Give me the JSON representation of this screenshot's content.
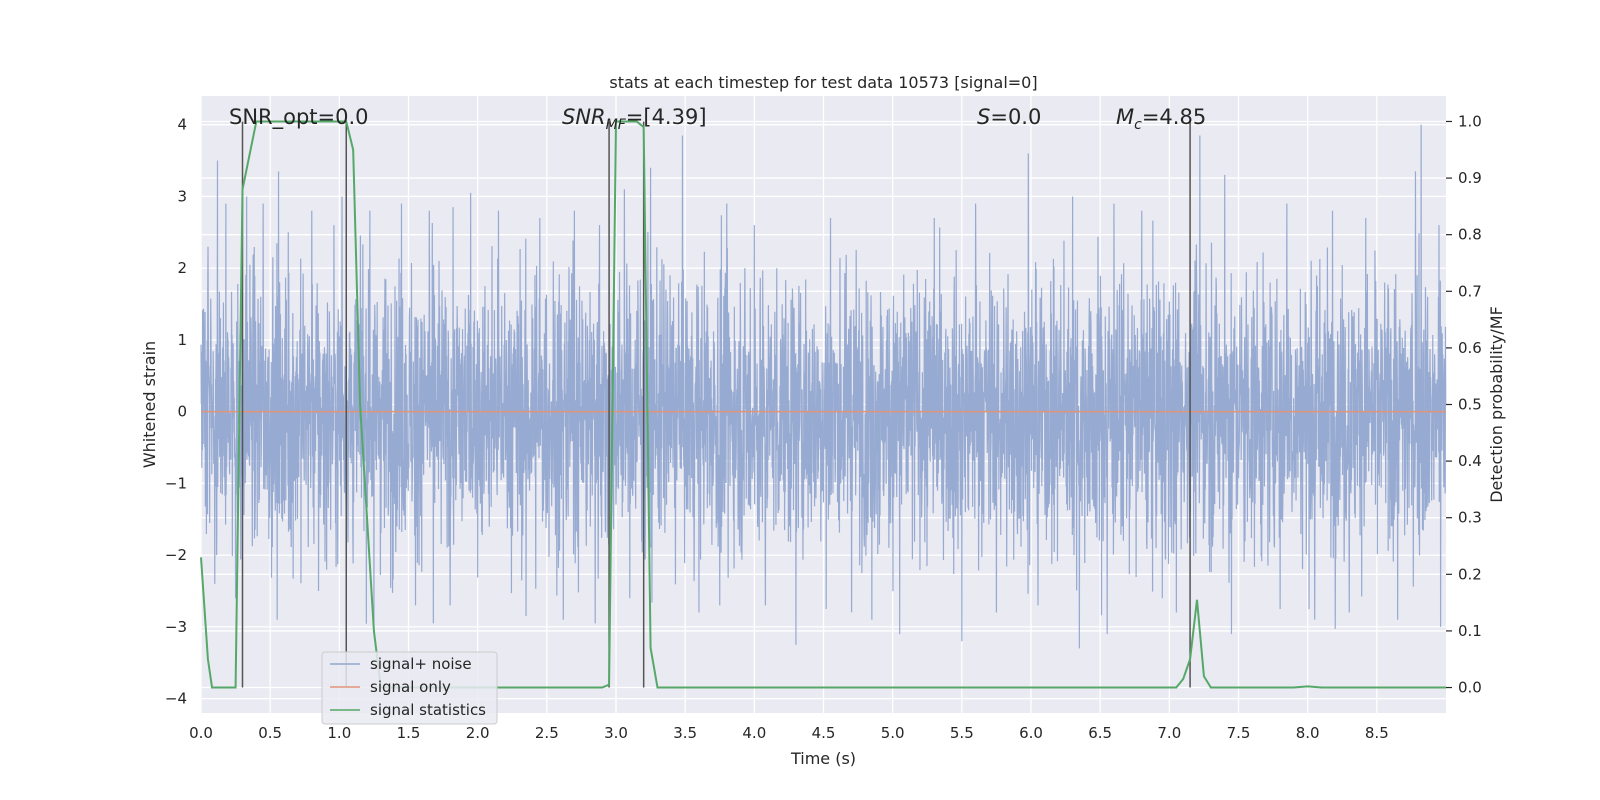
{
  "chart_data": {
    "type": "line",
    "title": "stats at each timestep for test data 10573 [signal=0]",
    "xlabel": "Time (s)",
    "ylabel": "Whitened strain",
    "y2label": "Detection probability/MF",
    "xlim": [
      0,
      9.0
    ],
    "ylim": [
      -4.2,
      4.4
    ],
    "y2lim": [
      -0.045,
      1.045
    ],
    "xticks": [
      0.0,
      0.5,
      1.0,
      1.5,
      2.0,
      2.5,
      3.0,
      3.5,
      4.0,
      4.5,
      5.0,
      5.5,
      6.0,
      6.5,
      7.0,
      7.5,
      8.0,
      8.5
    ],
    "xtick_labels": [
      "0.0",
      "0.5",
      "1.0",
      "1.5",
      "2.0",
      "2.5",
      "3.0",
      "3.5",
      "4.0",
      "4.5",
      "5.0",
      "5.5",
      "6.0",
      "6.5",
      "7.0",
      "7.5",
      "8.0",
      "8.5"
    ],
    "yticks": [
      -4,
      -3,
      -2,
      -1,
      0,
      1,
      2,
      3,
      4
    ],
    "ytick_labels": [
      "−4",
      "−3",
      "−2",
      "−1",
      "0",
      "1",
      "2",
      "3",
      "4"
    ],
    "y2ticks": [
      0.0,
      0.1,
      0.2,
      0.3,
      0.4,
      0.5,
      0.6,
      0.7,
      0.8,
      0.9,
      1.0
    ],
    "y2tick_labels": [
      "0.0",
      "0.1",
      "0.2",
      "0.3",
      "0.4",
      "0.5",
      "0.6",
      "0.7",
      "0.8",
      "0.9",
      "1.0"
    ],
    "grid": true,
    "legend_position": "lower-left",
    "annotations": {
      "snr_opt": "SNR_opt=0.0",
      "snr_mf_main": "SNR",
      "snr_mf_sub": "MF",
      "snr_mf_value": "=[4.39]",
      "s_main": "S",
      "s_value": "=0.0",
      "mc_main": "M",
      "mc_sub": "c",
      "mc_value": "=4.85"
    },
    "series": [
      {
        "name": "signal+ noise",
        "color": "#92a6cf",
        "axis": "left",
        "kind": "noise",
        "sample_rate": 512,
        "std": 0.95,
        "peaks": [
          [
            0.05,
            2.3
          ],
          [
            0.12,
            3.5
          ],
          [
            0.18,
            2.9
          ],
          [
            0.33,
            3.0
          ],
          [
            0.38,
            2.2
          ],
          [
            0.45,
            2.9
          ],
          [
            0.56,
            3.35
          ],
          [
            0.63,
            2.5
          ],
          [
            0.8,
            2.8
          ],
          [
            0.96,
            2.6
          ],
          [
            1.02,
            3.0
          ],
          [
            1.22,
            2.8
          ],
          [
            1.45,
            2.9
          ],
          [
            1.65,
            2.8
          ],
          [
            1.95,
            3.05
          ],
          [
            2.15,
            2.8
          ],
          [
            2.45,
            2.7
          ],
          [
            2.7,
            2.8
          ],
          [
            2.88,
            2.6
          ],
          [
            3.06,
            3.1
          ],
          [
            3.25,
            3.4
          ],
          [
            3.48,
            3.85
          ],
          [
            3.8,
            2.9
          ],
          [
            4.0,
            2.6
          ],
          [
            4.55,
            2.7
          ],
          [
            4.85,
            3.2
          ],
          [
            5.3,
            2.7
          ],
          [
            5.6,
            2.9
          ],
          [
            5.98,
            3.6
          ],
          [
            6.3,
            3.0
          ],
          [
            6.6,
            2.9
          ],
          [
            6.8,
            2.8
          ],
          [
            7.22,
            3.85
          ],
          [
            7.4,
            3.3
          ],
          [
            7.85,
            2.9
          ],
          [
            8.18,
            2.8
          ],
          [
            8.42,
            2.7
          ],
          [
            8.78,
            3.35
          ],
          [
            8.82,
            4.0
          ],
          [
            8.95,
            2.6
          ]
        ],
        "troughs": [
          [
            0.1,
            -2.4
          ],
          [
            0.25,
            -2.6
          ],
          [
            0.55,
            -2.9
          ],
          [
            0.85,
            -2.5
          ],
          [
            1.05,
            -2.85
          ],
          [
            1.25,
            -3.1
          ],
          [
            1.55,
            -2.7
          ],
          [
            1.68,
            -2.95
          ],
          [
            1.8,
            -2.7
          ],
          [
            2.35,
            -2.85
          ],
          [
            2.62,
            -2.9
          ],
          [
            2.85,
            -2.95
          ],
          [
            3.1,
            -2.6
          ],
          [
            3.6,
            -2.8
          ],
          [
            3.75,
            -2.7
          ],
          [
            4.08,
            -2.7
          ],
          [
            4.3,
            -3.25
          ],
          [
            4.52,
            -2.75
          ],
          [
            4.85,
            -2.9
          ],
          [
            5.05,
            -3.1
          ],
          [
            5.5,
            -3.2
          ],
          [
            5.75,
            -2.8
          ],
          [
            6.05,
            -2.7
          ],
          [
            6.35,
            -3.3
          ],
          [
            6.55,
            -3.1
          ],
          [
            6.95,
            -2.6
          ],
          [
            7.05,
            -2.8
          ],
          [
            7.45,
            -3.1
          ],
          [
            7.8,
            -2.75
          ],
          [
            8.05,
            -2.9
          ],
          [
            8.3,
            -2.8
          ],
          [
            8.65,
            -2.9
          ],
          [
            8.96,
            -3.0
          ]
        ]
      },
      {
        "name": "signal only",
        "color": "#e0957a",
        "axis": "left",
        "x": [
          0.0,
          9.0
        ],
        "y": [
          0.0,
          0.0
        ]
      },
      {
        "name": "signal statistics",
        "color": "#55a868",
        "axis": "right",
        "x": [
          0.0,
          0.05,
          0.08,
          0.12,
          0.2,
          0.25,
          0.3,
          0.4,
          0.6,
          0.9,
          1.05,
          1.1,
          1.15,
          1.25,
          1.3,
          1.5,
          2.0,
          2.5,
          2.9,
          2.95,
          3.0,
          3.05,
          3.15,
          3.2,
          3.25,
          3.3,
          3.5,
          4.0,
          5.0,
          6.0,
          7.0,
          7.05,
          7.1,
          7.15,
          7.2,
          7.25,
          7.3,
          7.5,
          7.9,
          8.0,
          8.1,
          9.0
        ],
        "y": [
          0.23,
          0.05,
          0.0,
          0.0,
          0.0,
          0.0,
          0.88,
          1.0,
          1.0,
          1.0,
          1.0,
          0.95,
          0.5,
          0.1,
          0.0,
          0.0,
          0.0,
          0.0,
          0.0,
          0.005,
          1.0,
          1.0,
          1.0,
          0.99,
          0.07,
          0.0,
          0.0,
          0.0,
          0.0,
          0.0,
          0.0,
          0.0,
          0.015,
          0.05,
          0.155,
          0.02,
          0.0,
          0.0,
          0.0,
          0.002,
          0.0,
          0.0
        ]
      }
    ],
    "vertical_lines": [
      0.3,
      1.05,
      2.95,
      3.2,
      7.15
    ]
  }
}
